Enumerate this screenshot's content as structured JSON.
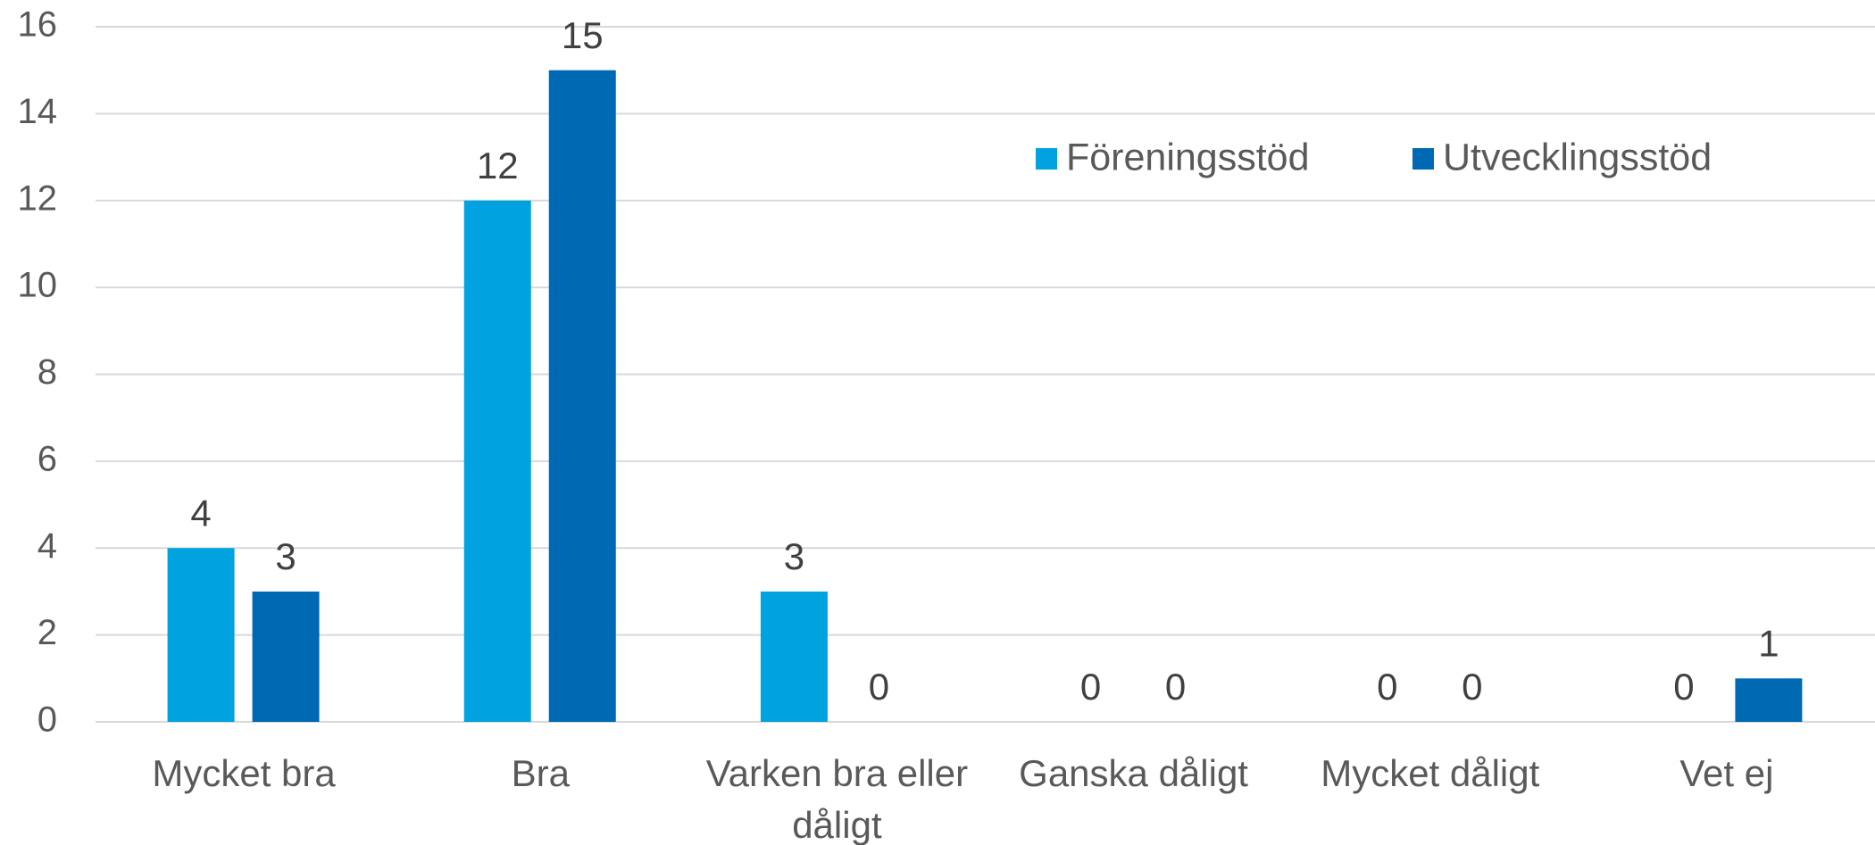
{
  "chart_data": {
    "type": "bar",
    "categories": [
      "Mycket bra",
      "Bra",
      "Varken bra eller dåligt",
      "Ganska dåligt",
      "Mycket dåligt",
      "Vet ej"
    ],
    "series": [
      {
        "name": "Föreningsstöd",
        "color": "#00a3e0",
        "values": [
          4,
          12,
          3,
          0,
          0,
          0
        ]
      },
      {
        "name": "Utvecklingsstöd",
        "color": "#0069b4",
        "values": [
          3,
          15,
          0,
          0,
          0,
          1
        ]
      }
    ],
    "ylim": [
      0,
      16
    ],
    "yticks": [
      0,
      2,
      4,
      6,
      8,
      10,
      12,
      14,
      16
    ],
    "grid": true,
    "legend": "top"
  }
}
